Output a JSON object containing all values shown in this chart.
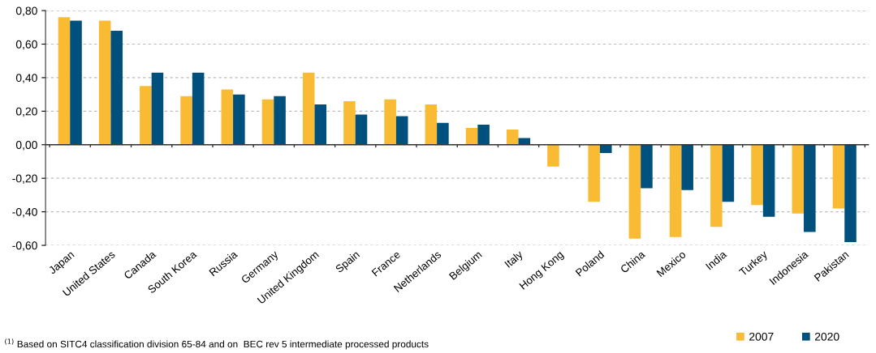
{
  "chart_data": {
    "type": "bar",
    "categories": [
      "Japan",
      "United States",
      "Canada",
      "South Korea",
      "Russia",
      "Germany",
      "United Kingdom",
      "Spain",
      "France",
      "Netherlands",
      "Belgium",
      "Italy",
      "Hong Kong",
      "Poland",
      "China",
      "Mexico",
      "India",
      "Turkey",
      "Indonesia",
      "Pakistan"
    ],
    "series": [
      {
        "name": "2007",
        "color": "#f9bb33",
        "values": [
          0.76,
          0.74,
          0.35,
          0.29,
          0.33,
          0.27,
          0.43,
          0.26,
          0.27,
          0.24,
          0.1,
          0.09,
          -0.13,
          -0.34,
          -0.56,
          -0.55,
          -0.49,
          -0.36,
          -0.41,
          -0.38
        ]
      },
      {
        "name": "2020",
        "color": "#00507d",
        "values": [
          0.74,
          0.68,
          0.43,
          0.43,
          0.3,
          0.29,
          0.24,
          0.18,
          0.17,
          0.13,
          0.12,
          0.04,
          null,
          -0.05,
          -0.26,
          -0.27,
          -0.34,
          -0.43,
          -0.52,
          -0.58
        ]
      }
    ],
    "ylim": [
      -0.6,
      0.8
    ],
    "yticks": [
      {
        "value": 0.8,
        "label": "0,80"
      },
      {
        "value": 0.6,
        "label": "0,60"
      },
      {
        "value": 0.4,
        "label": "0,40"
      },
      {
        "value": 0.2,
        "label": "0,20"
      },
      {
        "value": 0,
        "label": "0,00"
      },
      {
        "value": -0.2,
        "label": "-0,20"
      },
      {
        "value": -0.4,
        "label": "-0,40"
      },
      {
        "value": -0.6,
        "label": "-0,60"
      }
    ],
    "grid": "y",
    "legend": "bottom right",
    "annotations": [
      "$^{(1)}$ Based on SITC4 classification division 65-84 and on  BEC rev 5 intermediate processed products"
    ]
  }
}
